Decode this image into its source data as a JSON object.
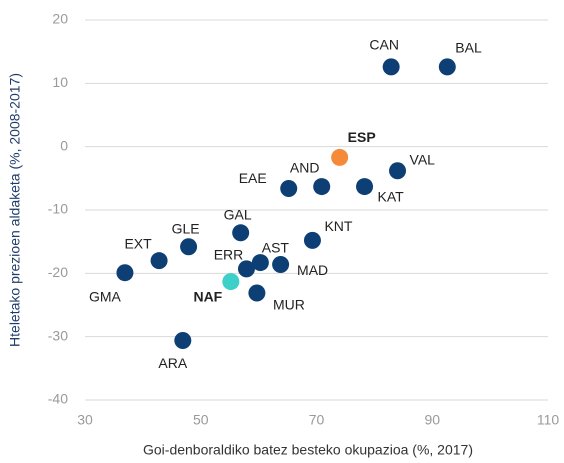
{
  "chart_data": {
    "type": "scatter",
    "x_label": "Goi-denboraldiko  batez besteko okupazioa   (%, 2017)",
    "y_label": "Hteletako prezioen  aldaketa  (%,  2008-2017)",
    "labels": [
      "CAN",
      "BAL",
      "ESP",
      "VAL",
      "AND",
      "EAE",
      "KAT",
      "KNT",
      "GAL",
      "GLE",
      "EXT",
      "GMA",
      "ERR",
      "AST",
      "MAD",
      "NAF",
      "MUR",
      "ARA"
    ],
    "x": [
      82.9,
      92.6,
      74.0,
      84.0,
      70.9,
      65.2,
      78.3,
      69.3,
      56.9,
      47.9,
      42.8,
      36.9,
      57.9,
      60.3,
      63.8,
      55.2,
      59.7,
      46.9
    ],
    "values": [
      12.6,
      12.6,
      -1.7,
      -3.8,
      -6.3,
      -6.6,
      -6.3,
      -14.8,
      -13.6,
      -15.8,
      -18.0,
      -19.9,
      -19.3,
      -18.3,
      -18.6,
      -21.3,
      -23.1,
      -30.6
    ],
    "colors": [
      "#0d3f75",
      "#0d3f75",
      "#f48a3a",
      "#0d3f75",
      "#0d3f75",
      "#0d3f75",
      "#0d3f75",
      "#0d3f75",
      "#0d3f75",
      "#0d3f75",
      "#0d3f75",
      "#0d3f75",
      "#0d3f75",
      "#0d3f75",
      "#0d3f75",
      "#3dd0c8",
      "#0d3f75",
      "#0d3f75"
    ],
    "xlim": [
      30,
      110
    ],
    "xticks": [
      30,
      50,
      70,
      90,
      110
    ],
    "ylim": [
      -40,
      20
    ],
    "yticks": [
      -40,
      -30,
      -20,
      -10,
      0,
      10,
      20
    ],
    "grid": true
  }
}
